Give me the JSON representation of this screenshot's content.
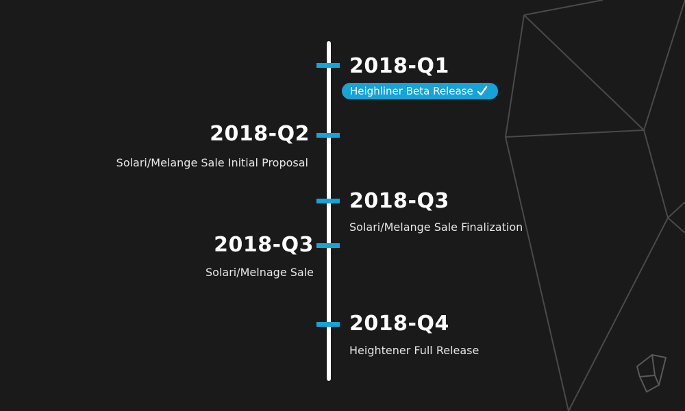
{
  "milestones": [
    {
      "date": "2018-Q1",
      "label": "Heighliner Beta Release",
      "side": "right",
      "completed": true
    },
    {
      "date": "2018-Q2",
      "label": "Solari/Melange Sale Initial Proposal",
      "side": "left",
      "completed": false
    },
    {
      "date": "2018-Q3",
      "label": "Solari/Melange Sale Finalization",
      "side": "right",
      "completed": false
    },
    {
      "date": "2018-Q3",
      "label": "Solari/Melnage Sale",
      "side": "left",
      "completed": false
    },
    {
      "date": "2018-Q4",
      "label": "Heightener Full Release",
      "side": "right",
      "completed": false
    }
  ],
  "colors": {
    "background": "#1a1a1a",
    "accent": "#16a3d8",
    "axis": "#ffffff",
    "decor_lines": "#4a4a4a"
  },
  "icons": {
    "completed": "check-icon",
    "logo": "crystal-logo-icon"
  }
}
